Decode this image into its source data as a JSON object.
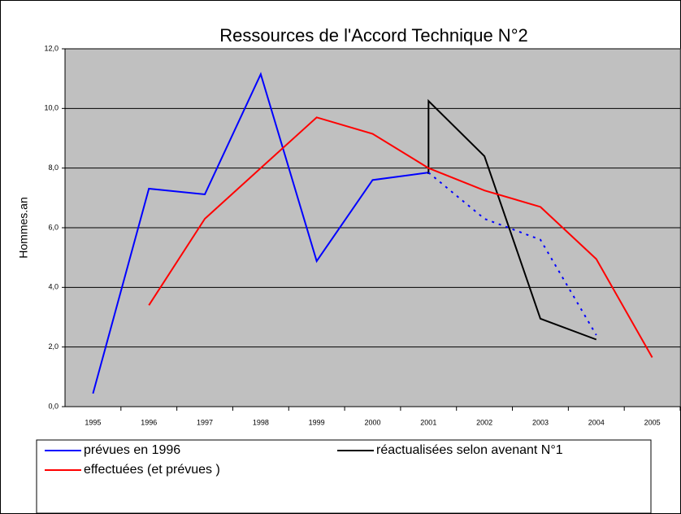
{
  "chart_data": {
    "type": "line",
    "title": "Ressources de l'Accord Technique N°2",
    "y_label": "Hommes.an",
    "x": [
      1995,
      1996,
      1997,
      1998,
      1999,
      2000,
      2001,
      2002,
      2003,
      2004,
      2005
    ],
    "xlim": [
      1994.5,
      2005.5
    ],
    "ylim": [
      0,
      12
    ],
    "yticks": [
      {
        "value": 0,
        "label": "0,0"
      },
      {
        "value": 2,
        "label": "2,0"
      },
      {
        "value": 4,
        "label": "4,0"
      },
      {
        "value": 6,
        "label": "6,0"
      },
      {
        "value": 8,
        "label": "8,0"
      },
      {
        "value": 10,
        "label": "10,0"
      },
      {
        "value": 12,
        "label": "12,0"
      }
    ],
    "grid": true,
    "legend": "bottom",
    "series": [
      {
        "name": "prévues en 1996",
        "color": "#0000ff",
        "values": [
          0.44,
          7.31,
          7.12,
          11.15,
          4.88,
          7.6,
          7.85,
          null,
          null,
          null,
          null
        ]
      },
      {
        "name": "réactualisées selon avenant N°1",
        "color": "#000000",
        "x": [
          2001,
          2001,
          2002,
          2003,
          2004
        ],
        "values": [
          7.8,
          10.25,
          8.4,
          2.95,
          2.25
        ]
      },
      {
        "name": "effectuées (et prévues )",
        "color": "#ff0000",
        "values": [
          null,
          3.4,
          6.3,
          8.0,
          9.7,
          9.15,
          8.0,
          7.25,
          6.7,
          4.95,
          1.65
        ]
      },
      {
        "color": "#0000ff",
        "dash": "dotted",
        "values": [
          null,
          null,
          null,
          null,
          null,
          null,
          7.85,
          6.3,
          5.6,
          2.4,
          null
        ]
      }
    ]
  }
}
